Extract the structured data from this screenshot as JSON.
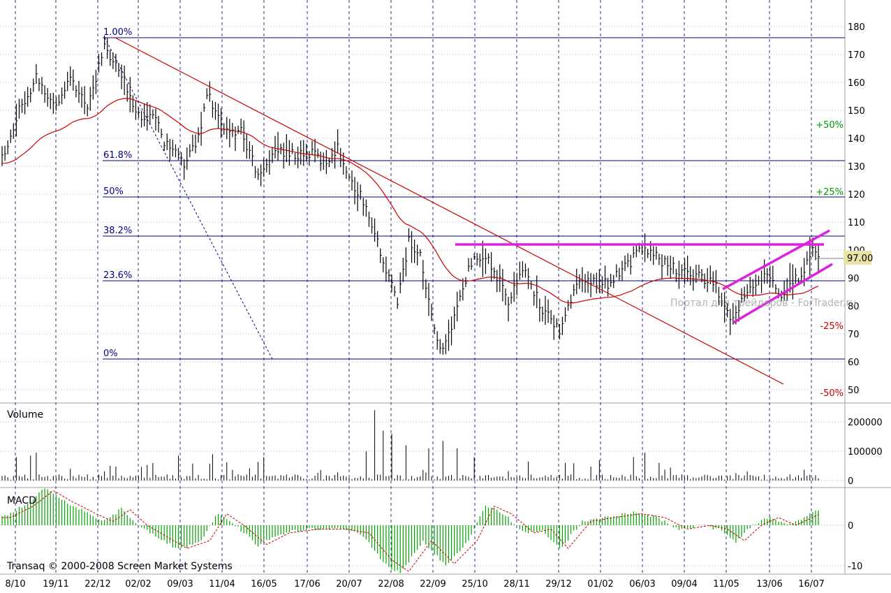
{
  "colors": {
    "background": "#ffffff",
    "price_bars": "#000000",
    "moving_average": "#cc0000",
    "fib_lines": "#000080",
    "channel": "#e020e0",
    "volume_bars": "#000000",
    "macd_hist": "#00a000",
    "macd_signal": "#cc0000",
    "current_price_bg": "#e8e4a8",
    "pct_positive": "#009900",
    "pct_negative": "#cc0000",
    "dates_vgrid": "#000080"
  },
  "chart_data": [
    {
      "type": "line",
      "panel": "price",
      "ylim": [
        45,
        185
      ],
      "y_ticks": [
        50,
        60,
        70,
        80,
        90,
        100,
        110,
        120,
        130,
        140,
        150,
        160,
        170,
        180
      ],
      "x_tick_labels": [
        "8/10",
        "19/11",
        "22/12",
        "02/02",
        "09/03",
        "11/04",
        "16/05",
        "17/06",
        "20/07",
        "22/08",
        "22/09",
        "25/10",
        "28/11",
        "29/12",
        "01/02",
        "06/03",
        "09/04",
        "11/05",
        "13/06",
        "16/07"
      ],
      "current_price": "97.00",
      "fib_levels": [
        {
          "label": "1.00%",
          "value": 176
        },
        {
          "label": "61.8%",
          "value": 132
        },
        {
          "label": "50%",
          "value": 119
        },
        {
          "label": "38.2%",
          "value": 105
        },
        {
          "label": "23.6%",
          "value": 89
        },
        {
          "label": "0%",
          "value": 61
        }
      ],
      "pct_labels": [
        {
          "label": "+50%",
          "value": 145
        },
        {
          "label": "+25%",
          "value": 121
        },
        {
          "label": "-25%",
          "value": 73
        },
        {
          "label": "-50%",
          "value": 49
        }
      ],
      "watermark": "Портал для трейдеров - ForTrader.ru",
      "price_anchors": [
        {
          "idx": 0,
          "v": 133
        },
        {
          "idx": 6,
          "v": 150
        },
        {
          "idx": 12,
          "v": 162
        },
        {
          "idx": 18,
          "v": 152
        },
        {
          "idx": 24,
          "v": 160
        },
        {
          "idx": 30,
          "v": 152
        },
        {
          "idx": 36,
          "v": 172
        },
        {
          "idx": 42,
          "v": 162
        },
        {
          "idx": 48,
          "v": 149
        },
        {
          "idx": 54,
          "v": 146
        },
        {
          "idx": 58,
          "v": 137
        },
        {
          "idx": 64,
          "v": 131
        },
        {
          "idx": 69,
          "v": 140
        },
        {
          "idx": 72,
          "v": 157
        },
        {
          "idx": 78,
          "v": 142
        },
        {
          "idx": 84,
          "v": 143
        },
        {
          "idx": 90,
          "v": 126
        },
        {
          "idx": 96,
          "v": 136
        },
        {
          "idx": 102,
          "v": 134
        },
        {
          "idx": 108,
          "v": 135
        },
        {
          "idx": 114,
          "v": 131
        },
        {
          "idx": 118,
          "v": 137
        },
        {
          "idx": 122,
          "v": 125
        },
        {
          "idx": 126,
          "v": 120
        },
        {
          "idx": 130,
          "v": 110
        },
        {
          "idx": 134,
          "v": 95
        },
        {
          "idx": 139,
          "v": 82
        },
        {
          "idx": 143,
          "v": 103
        },
        {
          "idx": 147,
          "v": 98
        },
        {
          "idx": 151,
          "v": 75
        },
        {
          "idx": 155,
          "v": 63
        },
        {
          "idx": 160,
          "v": 80
        },
        {
          "idx": 166,
          "v": 99
        },
        {
          "idx": 172,
          "v": 95
        },
        {
          "idx": 178,
          "v": 82
        },
        {
          "idx": 184,
          "v": 93
        },
        {
          "idx": 190,
          "v": 78
        },
        {
          "idx": 196,
          "v": 72
        },
        {
          "idx": 202,
          "v": 87
        },
        {
          "idx": 208,
          "v": 89
        },
        {
          "idx": 214,
          "v": 88
        },
        {
          "idx": 220,
          "v": 95
        },
        {
          "idx": 226,
          "v": 101
        },
        {
          "idx": 232,
          "v": 96
        },
        {
          "idx": 238,
          "v": 92
        },
        {
          "idx": 244,
          "v": 91
        },
        {
          "idx": 250,
          "v": 89
        },
        {
          "idx": 254,
          "v": 80
        },
        {
          "idx": 257,
          "v": 75
        },
        {
          "idx": 262,
          "v": 86
        },
        {
          "idx": 268,
          "v": 92
        },
        {
          "idx": 274,
          "v": 84
        },
        {
          "idx": 280,
          "v": 90
        },
        {
          "idx": 285,
          "v": 100
        },
        {
          "idx": 287,
          "v": 96
        }
      ]
    },
    {
      "type": "bar",
      "panel": "volume",
      "title": "Volume",
      "ylim": [
        0,
        240000
      ],
      "y_ticks": [
        0,
        100000,
        200000
      ],
      "spikes": [
        {
          "idx": 5,
          "v": 80000
        },
        {
          "idx": 10,
          "v": 85000
        },
        {
          "idx": 12,
          "v": 95000
        },
        {
          "idx": 24,
          "v": 40000
        },
        {
          "idx": 38,
          "v": 50000
        },
        {
          "idx": 62,
          "v": 85000
        },
        {
          "idx": 74,
          "v": 90000
        },
        {
          "idx": 92,
          "v": 80000
        },
        {
          "idx": 128,
          "v": 100000
        },
        {
          "idx": 131,
          "v": 240000
        },
        {
          "idx": 134,
          "v": 170000
        },
        {
          "idx": 137,
          "v": 160000
        },
        {
          "idx": 142,
          "v": 120000
        },
        {
          "idx": 150,
          "v": 110000
        },
        {
          "idx": 155,
          "v": 135000
        },
        {
          "idx": 160,
          "v": 110000
        },
        {
          "idx": 166,
          "v": 80000
        },
        {
          "idx": 185,
          "v": 65000
        },
        {
          "idx": 198,
          "v": 60000
        },
        {
          "idx": 210,
          "v": 70000
        },
        {
          "idx": 222,
          "v": 80000
        },
        {
          "idx": 226,
          "v": 95000
        },
        {
          "idx": 231,
          "v": 60000
        },
        {
          "idx": 258,
          "v": 25000
        }
      ]
    },
    {
      "type": "bar",
      "panel": "macd",
      "title": "MACD",
      "ylim": [
        -12,
        10
      ],
      "y_ticks": [
        -10,
        0
      ],
      "hist_anchors": [
        {
          "idx": 0,
          "v": 2
        },
        {
          "idx": 8,
          "v": 5
        },
        {
          "idx": 15,
          "v": 9
        },
        {
          "idx": 22,
          "v": 6
        },
        {
          "idx": 30,
          "v": 3
        },
        {
          "idx": 36,
          "v": 1
        },
        {
          "idx": 42,
          "v": 4
        },
        {
          "idx": 48,
          "v": 0
        },
        {
          "idx": 55,
          "v": -3
        },
        {
          "idx": 62,
          "v": -6
        },
        {
          "idx": 70,
          "v": -4
        },
        {
          "idx": 76,
          "v": 3
        },
        {
          "idx": 82,
          "v": 0
        },
        {
          "idx": 90,
          "v": -5
        },
        {
          "idx": 98,
          "v": -2
        },
        {
          "idx": 108,
          "v": -1
        },
        {
          "idx": 118,
          "v": -1
        },
        {
          "idx": 126,
          "v": -2
        },
        {
          "idx": 134,
          "v": -9
        },
        {
          "idx": 140,
          "v": -12
        },
        {
          "idx": 148,
          "v": -4
        },
        {
          "idx": 156,
          "v": -10
        },
        {
          "idx": 164,
          "v": -4
        },
        {
          "idx": 170,
          "v": 5
        },
        {
          "idx": 176,
          "v": 3
        },
        {
          "idx": 184,
          "v": -2
        },
        {
          "idx": 190,
          "v": -1
        },
        {
          "idx": 196,
          "v": -6
        },
        {
          "idx": 204,
          "v": 1
        },
        {
          "idx": 212,
          "v": 2
        },
        {
          "idx": 222,
          "v": 3
        },
        {
          "idx": 230,
          "v": 2
        },
        {
          "idx": 238,
          "v": -1
        },
        {
          "idx": 246,
          "v": 0
        },
        {
          "idx": 252,
          "v": -1
        },
        {
          "idx": 258,
          "v": -4
        },
        {
          "idx": 264,
          "v": 0
        },
        {
          "idx": 270,
          "v": 2
        },
        {
          "idx": 276,
          "v": 0
        },
        {
          "idx": 282,
          "v": 2
        },
        {
          "idx": 287,
          "v": 4
        }
      ]
    }
  ],
  "copyright": "Transaq © 2000-2008 Screen Market Systems"
}
